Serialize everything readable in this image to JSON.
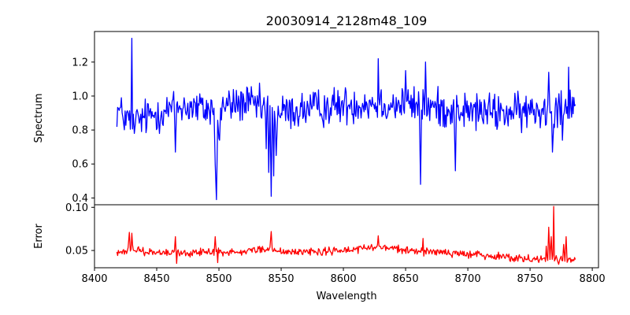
{
  "chart_data": [
    {
      "type": "line",
      "title": "20030914_2128m48_109",
      "ylabel": "Spectrum",
      "xlim": [
        8400,
        8805
      ],
      "ylim": [
        0.36,
        1.38
      ],
      "xticks": [
        8400,
        8450,
        8500,
        8550,
        8600,
        8650,
        8700,
        8750,
        8800
      ],
      "yticks": [
        0.4,
        0.6,
        0.8,
        1.0,
        1.2
      ],
      "ytick_labels": [
        "0.4",
        "0.6",
        "0.8",
        "1.0",
        "1.2"
      ],
      "color": "#0000ff",
      "series": [
        {
          "x_start": 8418,
          "x_end": 8787,
          "noise_seed": 12345,
          "noise_sigma": 0.055,
          "baseline": [
            [
              8418,
              0.92
            ],
            [
              8430,
              0.84
            ],
            [
              8450,
              0.9
            ],
            [
              8470,
              0.94
            ],
            [
              8490,
              0.92
            ],
            [
              8520,
              0.96
            ],
            [
              8550,
              0.9
            ],
            [
              8580,
              0.93
            ],
            [
              8620,
              0.96
            ],
            [
              8660,
              0.94
            ],
            [
              8700,
              0.91
            ],
            [
              8740,
              0.9
            ],
            [
              8760,
              0.92
            ],
            [
              8787,
              0.97
            ]
          ],
          "features": [
            {
              "x": 8430,
              "y": 1.34
            },
            {
              "x": 8432,
              "y": 0.78
            },
            {
              "x": 8465,
              "y": 0.67
            },
            {
              "x": 8497,
              "y": 0.6
            },
            {
              "x": 8498,
              "y": 0.39
            },
            {
              "x": 8500,
              "y": 0.75
            },
            {
              "x": 8500.5,
              "y": 0.74
            },
            {
              "x": 8538,
              "y": 0.69
            },
            {
              "x": 8540,
              "y": 0.55
            },
            {
              "x": 8542,
              "y": 0.41
            },
            {
              "x": 8544,
              "y": 0.53
            },
            {
              "x": 8546,
              "y": 0.65
            },
            {
              "x": 8628,
              "y": 1.22
            },
            {
              "x": 8650,
              "y": 1.15
            },
            {
              "x": 8662,
              "y": 0.48
            },
            {
              "x": 8666,
              "y": 1.2
            },
            {
              "x": 8690,
              "y": 0.56
            },
            {
              "x": 8765,
              "y": 1.14
            },
            {
              "x": 8768,
              "y": 0.67
            },
            {
              "x": 8776,
              "y": 0.74
            },
            {
              "x": 8781,
              "y": 1.17
            }
          ]
        }
      ]
    },
    {
      "type": "line",
      "xlabel": "Wavelength",
      "ylabel": "Error",
      "xlim": [
        8400,
        8805
      ],
      "ylim": [
        0.03,
        0.103
      ],
      "xticks": [
        8400,
        8450,
        8500,
        8550,
        8600,
        8650,
        8700,
        8750,
        8800
      ],
      "xtick_labels": [
        "8400",
        "8450",
        "8500",
        "8550",
        "8600",
        "8650",
        "8700",
        "8750",
        "8800"
      ],
      "yticks": [
        0.05,
        0.1
      ],
      "ytick_labels": [
        "0.05",
        "0.10"
      ],
      "color": "#ff0000",
      "series": [
        {
          "x_start": 8418,
          "x_end": 8787,
          "noise_seed": 987,
          "noise_sigma": 0.0022,
          "baseline": [
            [
              8418,
              0.046
            ],
            [
              8428,
              0.052
            ],
            [
              8450,
              0.047
            ],
            [
              8500,
              0.048
            ],
            [
              8540,
              0.052
            ],
            [
              8560,
              0.048
            ],
            [
              8600,
              0.05
            ],
            [
              8630,
              0.054
            ],
            [
              8660,
              0.049
            ],
            [
              8700,
              0.046
            ],
            [
              8740,
              0.042
            ],
            [
              8787,
              0.038
            ]
          ],
          "features": [
            {
              "x": 8428,
              "y": 0.071
            },
            {
              "x": 8430,
              "y": 0.07
            },
            {
              "x": 8465,
              "y": 0.066
            },
            {
              "x": 8466,
              "y": 0.035
            },
            {
              "x": 8497,
              "y": 0.066
            },
            {
              "x": 8499,
              "y": 0.036
            },
            {
              "x": 8542,
              "y": 0.072
            },
            {
              "x": 8628,
              "y": 0.067
            },
            {
              "x": 8664,
              "y": 0.064
            },
            {
              "x": 8761,
              "y": 0.041
            },
            {
              "x": 8763,
              "y": 0.055
            },
            {
              "x": 8765,
              "y": 0.077
            },
            {
              "x": 8767,
              "y": 0.066
            },
            {
              "x": 8769,
              "y": 0.101
            },
            {
              "x": 8771,
              "y": 0.044
            },
            {
              "x": 8773,
              "y": 0.034
            },
            {
              "x": 8777,
              "y": 0.057
            },
            {
              "x": 8779,
              "y": 0.066
            },
            {
              "x": 8781,
              "y": 0.041
            }
          ]
        }
      ]
    }
  ]
}
